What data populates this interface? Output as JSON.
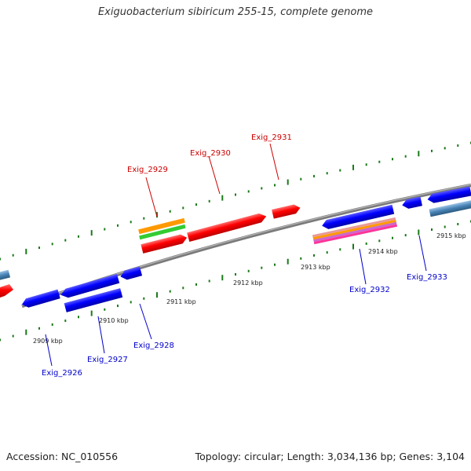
{
  "title": "Exiguobacterium sibiricum 255-15, complete genome",
  "footer": {
    "accession": "Accession: NC_010556",
    "summary": "Topology: circular; Length: 3,034,136 bp; Genes: 3,104"
  },
  "colors": {
    "forward_gene": "#ff0000",
    "reverse_gene": "#0000ff",
    "rna_gene": "#4682b4",
    "orange_feature": "#ff9900",
    "green_feature": "#33cc33",
    "pink_feature": "#ff3399",
    "backbone": "#808080",
    "tick": "#1a7a1a",
    "forward_label": "#cc0000",
    "reverse_label": "#0000cc"
  },
  "scale": {
    "unit": "kbp",
    "labels": [
      "2909 kbp",
      "2910 kbp",
      "2911 kbp",
      "2912 kbp",
      "2913 kbp",
      "2914 kbp",
      "2915 kbp"
    ]
  },
  "gene_labels": {
    "forward": [
      "Exig_2929",
      "Exig_2930",
      "Exig_2931"
    ],
    "reverse": [
      "Exig_2926",
      "Exig_2927",
      "Exig_2928",
      "Exig_2932",
      "Exig_2933"
    ]
  }
}
